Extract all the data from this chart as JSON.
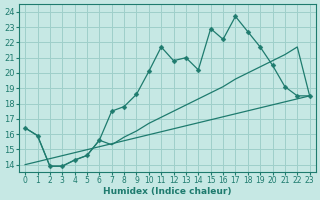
{
  "xlabel": "Humidex (Indice chaleur)",
  "background_color": "#c6e8e4",
  "grid_color": "#9ecfca",
  "line_color": "#1e7b6e",
  "xlim": [
    -0.5,
    23.5
  ],
  "ylim": [
    13.5,
    24.5
  ],
  "xticks": [
    0,
    1,
    2,
    3,
    4,
    5,
    6,
    7,
    8,
    9,
    10,
    11,
    12,
    13,
    14,
    15,
    16,
    17,
    18,
    19,
    20,
    21,
    22,
    23
  ],
  "yticks": [
    14,
    15,
    16,
    17,
    18,
    19,
    20,
    21,
    22,
    23,
    24
  ],
  "curve_x": [
    0,
    1,
    2,
    3,
    4,
    5,
    6,
    7,
    8,
    9,
    10,
    11,
    12,
    13,
    14,
    15,
    16,
    17,
    18,
    19,
    20,
    21,
    22,
    23
  ],
  "curve_y": [
    16.4,
    15.9,
    13.9,
    13.9,
    14.3,
    14.6,
    15.6,
    17.5,
    17.8,
    18.6,
    20.1,
    21.7,
    20.8,
    21.0,
    20.2,
    22.9,
    22.2,
    23.7,
    22.7,
    21.7,
    20.5,
    19.1,
    18.5,
    18.5
  ],
  "lower_line_x": [
    0,
    1,
    2,
    3,
    4,
    5,
    6,
    7,
    8,
    9,
    10,
    11,
    12,
    13,
    14,
    15,
    16,
    17,
    18,
    19,
    20,
    21,
    22,
    23
  ],
  "lower_line_y": [
    16.4,
    15.9,
    13.9,
    13.9,
    14.3,
    14.6,
    15.6,
    15.3,
    15.8,
    16.2,
    16.7,
    17.1,
    17.5,
    17.9,
    18.3,
    18.7,
    19.1,
    19.6,
    20.0,
    20.4,
    20.8,
    21.2,
    21.7,
    18.5
  ],
  "diag_line_x": [
    0,
    23
  ],
  "diag_line_y": [
    14.0,
    18.5
  ],
  "markersize": 2.5,
  "linewidth": 0.9
}
